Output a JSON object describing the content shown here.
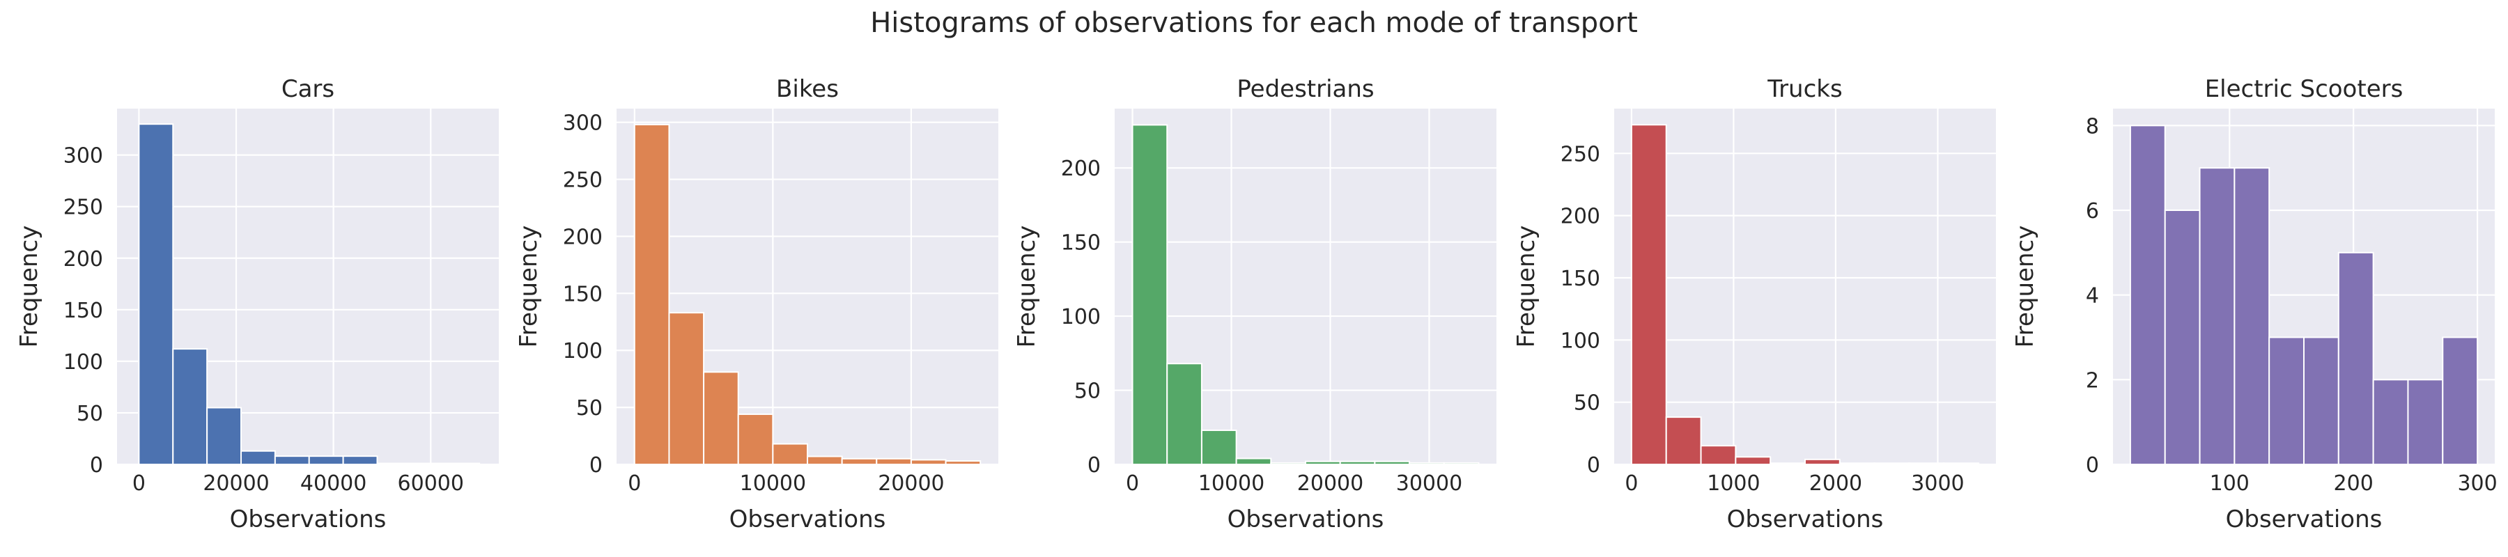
{
  "figure": {
    "title": "Histograms of observations for each mode of transport"
  },
  "chart_data": [
    {
      "type": "bar",
      "title": "Cars",
      "xlabel": "Observations",
      "ylabel": "Frequency",
      "color": "#4C72B0",
      "bin_edges": [
        0,
        7000,
        14000,
        21000,
        28000,
        35000,
        42000,
        49000,
        56000,
        63000,
        70000
      ],
      "values": [
        330,
        112,
        55,
        13,
        8,
        8,
        8,
        1,
        1,
        1
      ],
      "xlim": [
        -4500,
        74000
      ],
      "ylim": [
        0,
        345
      ],
      "xticks": [
        0,
        20000,
        40000,
        60000
      ],
      "xtick_labels": [
        "0",
        "20000",
        "40000",
        "60000"
      ],
      "yticks": [
        0,
        50,
        100,
        150,
        200,
        250,
        300
      ],
      "ytick_labels": [
        "0",
        "50",
        "100",
        "150",
        "200",
        "250",
        "300"
      ]
    },
    {
      "type": "bar",
      "title": "Bikes",
      "xlabel": "Observations",
      "ylabel": "Frequency",
      "color": "#DD8452",
      "bin_edges": [
        0,
        2500,
        5000,
        7500,
        10000,
        12500,
        15000,
        17500,
        20000,
        22500,
        25000
      ],
      "values": [
        298,
        133,
        81,
        44,
        18,
        7,
        5,
        5,
        4,
        3
      ],
      "xlim": [
        -1300,
        26300
      ],
      "ylim": [
        0,
        312
      ],
      "xticks": [
        0,
        10000,
        20000
      ],
      "xtick_labels": [
        "0",
        "10000",
        "20000"
      ],
      "yticks": [
        0,
        50,
        100,
        150,
        200,
        250,
        300
      ],
      "ytick_labels": [
        "0",
        "50",
        "100",
        "150",
        "200",
        "250",
        "300"
      ]
    },
    {
      "type": "bar",
      "title": "Pedestrians",
      "xlabel": "Observations",
      "ylabel": "Frequency",
      "color": "#55A868",
      "bin_edges": [
        0,
        3500,
        7000,
        10500,
        14000,
        17500,
        21000,
        24500,
        28000,
        31500,
        35000
      ],
      "values": [
        229,
        68,
        23,
        4,
        1,
        2,
        2,
        2,
        1,
        1
      ],
      "xlim": [
        -1800,
        36800
      ],
      "ylim": [
        0,
        240
      ],
      "xticks": [
        0,
        10000,
        20000,
        30000
      ],
      "xtick_labels": [
        "0",
        "10000",
        "20000",
        "30000"
      ],
      "yticks": [
        0,
        50,
        100,
        150,
        200
      ],
      "ytick_labels": [
        "0",
        "50",
        "100",
        "150",
        "200"
      ]
    },
    {
      "type": "bar",
      "title": "Trucks",
      "xlabel": "Observations",
      "ylabel": "Frequency",
      "color": "#C44E52",
      "bin_edges": [
        0,
        340,
        680,
        1020,
        1360,
        1700,
        2040,
        2380,
        2720,
        3060,
        3400
      ],
      "values": [
        273,
        38,
        15,
        6,
        1,
        4,
        1,
        1,
        1,
        1
      ],
      "xlim": [
        -170,
        3570
      ],
      "ylim": [
        0,
        286
      ],
      "xticks": [
        0,
        1000,
        2000,
        3000
      ],
      "xtick_labels": [
        "0",
        "1000",
        "2000",
        "3000"
      ],
      "yticks": [
        0,
        50,
        100,
        150,
        200,
        250
      ],
      "ytick_labels": [
        "0",
        "50",
        "100",
        "150",
        "200",
        "250"
      ]
    },
    {
      "type": "bar",
      "title": "Electric Scooters",
      "xlabel": "Observations",
      "ylabel": "Frequency",
      "color": "#8172B3",
      "bin_edges": [
        20,
        48,
        76,
        104,
        132,
        160,
        188,
        216,
        244,
        272,
        300
      ],
      "values": [
        8,
        6,
        7,
        7,
        3,
        3,
        5,
        2,
        2,
        3
      ],
      "xlim": [
        6,
        314
      ],
      "ylim": [
        0,
        8.4
      ],
      "xticks": [
        100,
        200,
        300
      ],
      "xtick_labels": [
        "100",
        "200",
        "300"
      ],
      "yticks": [
        0,
        2,
        4,
        6,
        8
      ],
      "ytick_labels": [
        "0",
        "2",
        "4",
        "6",
        "8"
      ]
    }
  ]
}
